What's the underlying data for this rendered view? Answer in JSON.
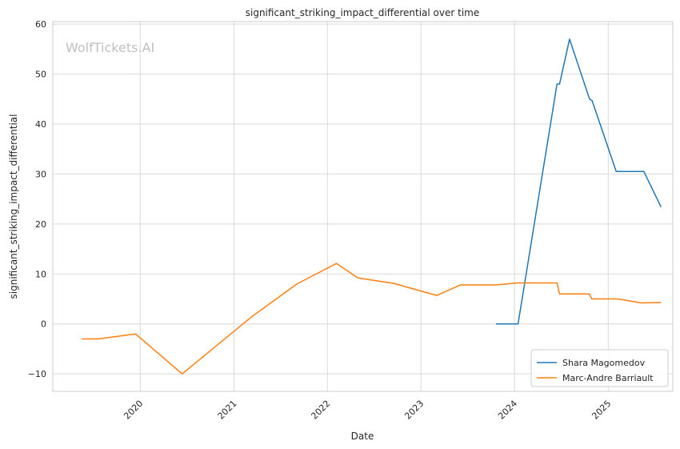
{
  "chart_data": {
    "type": "line",
    "title": "significant_striking_impact_differential over time",
    "xlabel": "Date",
    "ylabel": "significant_striking_impact_differential",
    "watermark": "WolfTickets.AI",
    "x_type": "date",
    "xlim": [
      "2019-01-25",
      "2025-09-10"
    ],
    "ylim": [
      -13.5,
      60.5
    ],
    "x_ticks": [
      {
        "value": "2020-01-01",
        "label": "2020"
      },
      {
        "value": "2021-01-01",
        "label": "2021"
      },
      {
        "value": "2022-01-01",
        "label": "2022"
      },
      {
        "value": "2023-01-01",
        "label": "2023"
      },
      {
        "value": "2024-01-01",
        "label": "2024"
      },
      {
        "value": "2025-01-01",
        "label": "2025"
      }
    ],
    "y_ticks": [
      {
        "value": -10,
        "label": "−10"
      },
      {
        "value": 0,
        "label": "0"
      },
      {
        "value": 10,
        "label": "10"
      },
      {
        "value": 20,
        "label": "20"
      },
      {
        "value": 30,
        "label": "30"
      },
      {
        "value": 40,
        "label": "40"
      },
      {
        "value": 50,
        "label": "50"
      },
      {
        "value": 60,
        "label": "60"
      }
    ],
    "grid": true,
    "legend_position": "bottom-right",
    "series": [
      {
        "name": "Shara Magomedov",
        "color": "#1f77b4",
        "points": [
          {
            "x": "2023-10-21",
            "y": 0
          },
          {
            "x": "2024-01-15",
            "y": 0
          },
          {
            "x": "2024-06-15",
            "y": 48
          },
          {
            "x": "2024-06-25",
            "y": 48
          },
          {
            "x": "2024-08-03",
            "y": 57
          },
          {
            "x": "2024-10-20",
            "y": 45
          },
          {
            "x": "2024-10-30",
            "y": 44.7
          },
          {
            "x": "2025-02-01",
            "y": 30.5
          },
          {
            "x": "2025-05-20",
            "y": 30.5
          },
          {
            "x": "2025-07-26",
            "y": 23.4
          }
        ]
      },
      {
        "name": "Marc-Andre Barriault",
        "color": "#ff7f0e",
        "points": [
          {
            "x": "2019-05-18",
            "y": -3
          },
          {
            "x": "2019-07-20",
            "y": -3
          },
          {
            "x": "2019-12-14",
            "y": -2
          },
          {
            "x": "2020-06-13",
            "y": -10
          },
          {
            "x": "2021-03-13",
            "y": 1.5
          },
          {
            "x": "2021-09-04",
            "y": 8
          },
          {
            "x": "2022-02-05",
            "y": 12.1
          },
          {
            "x": "2022-04-30",
            "y": 9.2
          },
          {
            "x": "2022-09-17",
            "y": 8.1
          },
          {
            "x": "2023-03-04",
            "y": 5.7
          },
          {
            "x": "2023-06-03",
            "y": 7.8
          },
          {
            "x": "2023-10-21",
            "y": 7.8
          },
          {
            "x": "2024-01-13",
            "y": 8.2
          },
          {
            "x": "2024-06-15",
            "y": 8.2
          },
          {
            "x": "2024-06-25",
            "y": 6
          },
          {
            "x": "2024-10-19",
            "y": 6
          },
          {
            "x": "2024-10-29",
            "y": 5
          },
          {
            "x": "2025-02-08",
            "y": 5
          },
          {
            "x": "2025-05-10",
            "y": 4.2
          },
          {
            "x": "2025-07-26",
            "y": 4.3
          }
        ]
      }
    ]
  }
}
